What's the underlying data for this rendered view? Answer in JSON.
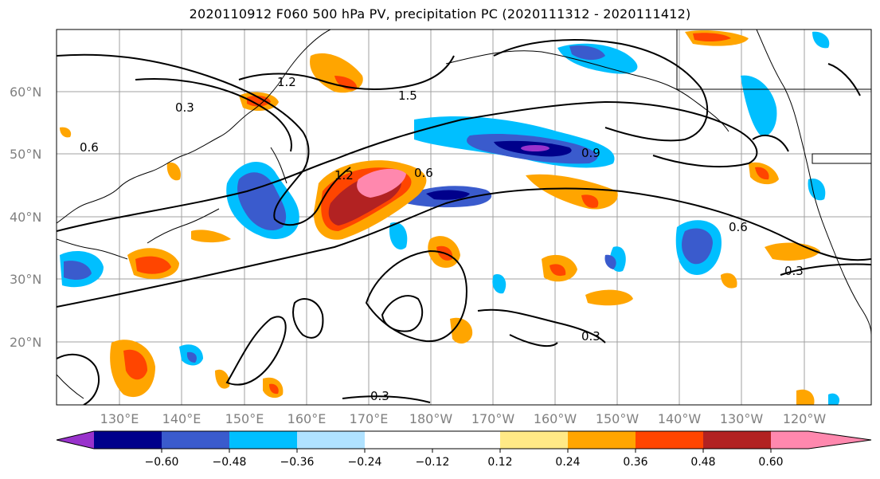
{
  "title": "2020110912 F060 500 hPa PV, precipitation PC (2020111312 - 2020111412)",
  "map": {
    "lat_labels": [
      "60°N",
      "50°N",
      "40°N",
      "30°N",
      "20°N"
    ],
    "lon_labels": [
      "130°E",
      "140°E",
      "150°E",
      "160°E",
      "170°E",
      "180°W",
      "170°W",
      "160°W",
      "150°W",
      "140°W",
      "130°W",
      "120°W"
    ],
    "pv_contour_labels": [
      "0.3",
      "0.6",
      "0.9",
      "1.2",
      "1.5"
    ]
  },
  "colorbar": {
    "colors": [
      "#9932CC",
      "#00008B",
      "#3A5BCD",
      "#00BFFF",
      "#B0E2FF",
      "#FFFFFF",
      "#FFFFFF",
      "#FFE986",
      "#FFA500",
      "#FF4500",
      "#B22222",
      "#FF88AE"
    ],
    "tick_labels": [
      "−0.60",
      "−0.48",
      "−0.36",
      "−0.24",
      "−0.12",
      "0.12",
      "0.24",
      "0.36",
      "0.48",
      "0.60"
    ]
  }
}
